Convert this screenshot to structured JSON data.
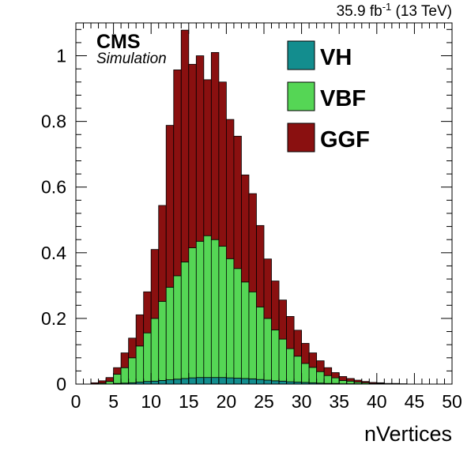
{
  "header": {
    "lumi_text": "35.9 fb",
    "lumi_sup": "-1",
    "energy_text": " (13 TeV)"
  },
  "experiment": {
    "name": "CMS",
    "tag": "Simulation"
  },
  "legend": {
    "entries": [
      {
        "label": "VH",
        "color": "#138d8e"
      },
      {
        "label": "VBF",
        "color": "#55d655"
      },
      {
        "label": "GGF",
        "color": "#8a1010"
      }
    ]
  },
  "chart_data": {
    "type": "bar",
    "stacked": true,
    "histogram": true,
    "xlabel": "nVertices",
    "ylabel": "",
    "xlim": [
      0,
      50
    ],
    "ylim": [
      0,
      1.1
    ],
    "bin_width": 1,
    "x_ticks": [
      0,
      5,
      10,
      15,
      20,
      25,
      30,
      35,
      40,
      45,
      50
    ],
    "x_tick_labels": [
      "0",
      "5",
      "10",
      "15",
      "20",
      "25",
      "30",
      "35",
      "40",
      "45",
      "50"
    ],
    "y_ticks": [
      0,
      0.2,
      0.4,
      0.6,
      0.8,
      1
    ],
    "y_tick_labels": [
      "0",
      "0.2",
      "0.4",
      "0.6",
      "0.8",
      "1"
    ],
    "x": [
      0,
      1,
      2,
      3,
      4,
      5,
      6,
      7,
      8,
      9,
      10,
      11,
      12,
      13,
      14,
      15,
      16,
      17,
      18,
      19,
      20,
      21,
      22,
      23,
      24,
      25,
      26,
      27,
      28,
      29,
      30,
      31,
      32,
      33,
      34,
      35,
      36,
      37,
      38,
      39,
      40,
      41,
      42,
      43,
      44,
      45,
      46,
      47,
      48,
      49
    ],
    "series": [
      {
        "name": "VH",
        "color": "#138d8e",
        "values": [
          0,
          0,
          0,
          0,
          0,
          0.002,
          0.003,
          0.004,
          0.006,
          0.008,
          0.009,
          0.011,
          0.013,
          0.015,
          0.017,
          0.019,
          0.02,
          0.02,
          0.02,
          0.02,
          0.019,
          0.018,
          0.017,
          0.016,
          0.014,
          0.012,
          0.01,
          0.009,
          0.007,
          0.006,
          0.005,
          0.004,
          0.003,
          0.002,
          0.002,
          0.001,
          0.001,
          0.001,
          0,
          0,
          0,
          0,
          0,
          0,
          0,
          0,
          0,
          0,
          0,
          0
        ]
      },
      {
        "name": "VBF",
        "color": "#55d655",
        "values": [
          0,
          0,
          0.001,
          0.003,
          0.008,
          0.028,
          0.047,
          0.076,
          0.11,
          0.148,
          0.191,
          0.241,
          0.282,
          0.315,
          0.355,
          0.396,
          0.415,
          0.432,
          0.42,
          0.4,
          0.363,
          0.334,
          0.294,
          0.265,
          0.221,
          0.188,
          0.155,
          0.128,
          0.101,
          0.079,
          0.058,
          0.047,
          0.035,
          0.024,
          0.017,
          0.01,
          0.008,
          0.005,
          0.004,
          0.002,
          0.002,
          0.001,
          0.001,
          0,
          0,
          0,
          0,
          0,
          0,
          0
        ]
      },
      {
        "name": "GGF",
        "color": "#8a1010",
        "values": [
          0,
          0,
          0.003,
          0.007,
          0.012,
          0.02,
          0.045,
          0.06,
          0.095,
          0.125,
          0.21,
          0.292,
          0.493,
          0.627,
          0.706,
          0.559,
          0.565,
          0.475,
          0.57,
          0.5,
          0.424,
          0.403,
          0.326,
          0.299,
          0.248,
          0.181,
          0.149,
          0.119,
          0.098,
          0.079,
          0.061,
          0.044,
          0.033,
          0.024,
          0.016,
          0.012,
          0.008,
          0.006,
          0.004,
          0.003,
          0.002,
          0.001,
          0.001,
          0.001,
          0,
          0,
          0,
          0,
          0,
          0
        ]
      }
    ]
  }
}
